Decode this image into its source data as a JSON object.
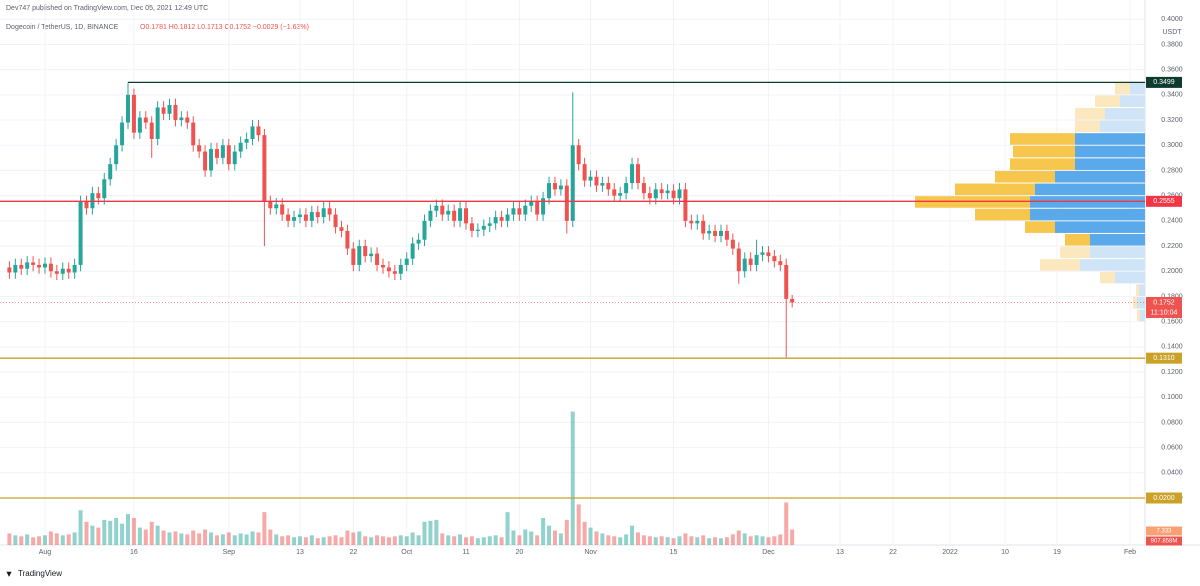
{
  "header": {
    "published": "Dev747 published on TradingView.com, Dec 05, 2021 12:49 UTC",
    "symbol": "Dogecoin / TetherUS, 1D, BINANCE",
    "ohlc": "O0.1781 H0.1812 L0.1713 C0.1752 −0.0029 (−1.63%)"
  },
  "chart_data": {
    "type": "candlestick",
    "categories": [
      null,
      null,
      null,
      null,
      null,
      null,
      "Aug",
      null,
      null,
      null,
      null,
      null,
      null,
      null,
      null,
      null,
      null,
      null,
      null,
      null,
      null,
      "16",
      null,
      null,
      null,
      null,
      null,
      null,
      null,
      null,
      null,
      null,
      null,
      null,
      null,
      null,
      null,
      "Sep",
      null,
      null,
      null,
      null,
      null,
      null,
      null,
      null,
      null,
      null,
      null,
      "13",
      null,
      null,
      null,
      null,
      null,
      null,
      null,
      null,
      "22",
      null,
      null,
      null,
      null,
      null,
      null,
      null,
      null,
      "Oct",
      null,
      null,
      null,
      null,
      null,
      null,
      null,
      null,
      null,
      "11",
      null,
      null,
      null,
      null,
      null,
      null,
      null,
      null,
      "20",
      null,
      null,
      null,
      null,
      null,
      null,
      null,
      null,
      null,
      null,
      null,
      "Nov",
      null,
      null,
      null,
      null,
      null,
      null,
      null,
      null,
      null,
      null,
      null,
      null,
      null,
      "15",
      null,
      null,
      null,
      null,
      null,
      null,
      null,
      null,
      null,
      null,
      null,
      null,
      null,
      null,
      null,
      "Dec",
      null,
      null,
      null,
      null
    ],
    "future_labels": [
      "13",
      "22",
      "2022",
      "10",
      "19",
      "Feb"
    ],
    "open": [
      0.203,
      0.199,
      0.205,
      0.202,
      0.207,
      0.205,
      0.203,
      0.206,
      0.2,
      0.198,
      0.202,
      0.199,
      0.205,
      0.255,
      0.25,
      0.262,
      0.258,
      0.273,
      0.285,
      0.3,
      0.318,
      0.34,
      0.31,
      0.322,
      0.318,
      0.305,
      0.33,
      0.325,
      0.332,
      0.32,
      0.322,
      0.318,
      0.3,
      0.295,
      0.28,
      0.297,
      0.29,
      0.3,
      0.285,
      0.295,
      0.302,
      0.305,
      0.315,
      0.308,
      0.255,
      0.25,
      0.253,
      0.245,
      0.24,
      0.243,
      0.245,
      0.24,
      0.247,
      0.243,
      0.25,
      0.245,
      0.235,
      0.232,
      0.218,
      0.205,
      0.22,
      0.212,
      0.214,
      0.205,
      0.203,
      0.2,
      0.198,
      0.205,
      0.21,
      0.222,
      0.225,
      0.24,
      0.248,
      0.252,
      0.245,
      0.248,
      0.24,
      0.25,
      0.238,
      0.232,
      0.233,
      0.236,
      0.238,
      0.243,
      0.24,
      0.245,
      0.25,
      0.245,
      0.252,
      0.255,
      0.245,
      0.258,
      0.27,
      0.265,
      0.268,
      0.24,
      0.3,
      0.285,
      0.272,
      0.275,
      0.268,
      0.27,
      0.265,
      0.26,
      0.262,
      0.27,
      0.285,
      0.27,
      0.262,
      0.258,
      0.265,
      0.262,
      0.264,
      0.258,
      0.265,
      0.24,
      0.238,
      0.24,
      0.23,
      0.232,
      0.228,
      0.232,
      0.225,
      0.218,
      0.2,
      0.21,
      0.205,
      0.213,
      0.215,
      0.212,
      0.208,
      0.205,
      0.1781
    ],
    "high": [
      0.208,
      0.21,
      0.21,
      0.212,
      0.212,
      0.21,
      0.211,
      0.211,
      0.205,
      0.207,
      0.207,
      0.21,
      0.26,
      0.26,
      0.267,
      0.267,
      0.278,
      0.29,
      0.305,
      0.323,
      0.3499,
      0.345,
      0.327,
      0.327,
      0.323,
      0.335,
      0.335,
      0.337,
      0.337,
      0.327,
      0.327,
      0.323,
      0.305,
      0.3,
      0.302,
      0.302,
      0.305,
      0.305,
      0.3,
      0.307,
      0.31,
      0.32,
      0.32,
      0.313,
      0.26,
      0.258,
      0.258,
      0.25,
      0.248,
      0.25,
      0.25,
      0.252,
      0.252,
      0.255,
      0.255,
      0.25,
      0.24,
      0.237,
      0.223,
      0.225,
      0.225,
      0.219,
      0.219,
      0.21,
      0.208,
      0.205,
      0.21,
      0.215,
      0.227,
      0.23,
      0.245,
      0.253,
      0.257,
      0.257,
      0.253,
      0.253,
      0.255,
      0.255,
      0.243,
      0.238,
      0.241,
      0.243,
      0.248,
      0.248,
      0.25,
      0.255,
      0.255,
      0.257,
      0.26,
      0.26,
      0.263,
      0.275,
      0.275,
      0.273,
      0.273,
      0.342,
      0.305,
      0.29,
      0.28,
      0.28,
      0.275,
      0.275,
      0.27,
      0.267,
      0.275,
      0.29,
      0.29,
      0.275,
      0.267,
      0.27,
      0.27,
      0.269,
      0.269,
      0.27,
      0.27,
      0.245,
      0.245,
      0.245,
      0.237,
      0.237,
      0.237,
      0.237,
      0.23,
      0.223,
      0.215,
      0.215,
      0.225,
      0.22,
      0.22,
      0.217,
      0.213,
      0.21,
      0.1812
    ],
    "low": [
      0.194,
      0.194,
      0.197,
      0.197,
      0.2,
      0.198,
      0.198,
      0.195,
      0.193,
      0.193,
      0.194,
      0.194,
      0.2,
      0.245,
      0.245,
      0.253,
      0.253,
      0.268,
      0.28,
      0.295,
      0.313,
      0.305,
      0.305,
      0.313,
      0.29,
      0.3,
      0.32,
      0.32,
      0.315,
      0.315,
      0.313,
      0.295,
      0.29,
      0.275,
      0.275,
      0.285,
      0.285,
      0.28,
      0.28,
      0.29,
      0.297,
      0.3,
      0.303,
      0.22,
      0.245,
      0.245,
      0.24,
      0.235,
      0.235,
      0.238,
      0.235,
      0.235,
      0.238,
      0.238,
      0.24,
      0.23,
      0.227,
      0.213,
      0.2,
      0.2,
      0.207,
      0.207,
      0.2,
      0.198,
      0.195,
      0.193,
      0.193,
      0.2,
      0.205,
      0.217,
      0.22,
      0.235,
      0.243,
      0.24,
      0.24,
      0.235,
      0.235,
      0.233,
      0.227,
      0.227,
      0.228,
      0.231,
      0.233,
      0.235,
      0.235,
      0.24,
      0.24,
      0.24,
      0.247,
      0.24,
      0.24,
      0.253,
      0.26,
      0.26,
      0.23,
      0.235,
      0.28,
      0.267,
      0.267,
      0.263,
      0.263,
      0.26,
      0.255,
      0.255,
      0.257,
      0.265,
      0.265,
      0.257,
      0.253,
      0.253,
      0.257,
      0.257,
      0.253,
      0.253,
      0.235,
      0.233,
      0.233,
      0.225,
      0.225,
      0.223,
      0.223,
      0.22,
      0.213,
      0.19,
      0.195,
      0.2,
      0.2,
      0.208,
      0.207,
      0.203,
      0.2,
      0.131,
      0.1713
    ],
    "close": [
      0.199,
      0.205,
      0.202,
      0.207,
      0.205,
      0.203,
      0.206,
      0.2,
      0.198,
      0.202,
      0.199,
      0.205,
      0.255,
      0.25,
      0.262,
      0.258,
      0.273,
      0.285,
      0.3,
      0.318,
      0.34,
      0.31,
      0.322,
      0.318,
      0.305,
      0.33,
      0.325,
      0.332,
      0.32,
      0.322,
      0.318,
      0.3,
      0.295,
      0.28,
      0.297,
      0.29,
      0.3,
      0.285,
      0.295,
      0.302,
      0.305,
      0.315,
      0.308,
      0.255,
      0.25,
      0.253,
      0.245,
      0.24,
      0.243,
      0.245,
      0.24,
      0.247,
      0.243,
      0.25,
      0.245,
      0.235,
      0.232,
      0.218,
      0.205,
      0.22,
      0.212,
      0.214,
      0.205,
      0.203,
      0.2,
      0.198,
      0.205,
      0.21,
      0.222,
      0.225,
      0.24,
      0.248,
      0.252,
      0.245,
      0.248,
      0.24,
      0.25,
      0.238,
      0.232,
      0.233,
      0.236,
      0.238,
      0.243,
      0.24,
      0.245,
      0.25,
      0.245,
      0.252,
      0.255,
      0.245,
      0.258,
      0.27,
      0.265,
      0.268,
      0.24,
      0.3,
      0.285,
      0.272,
      0.275,
      0.268,
      0.27,
      0.265,
      0.26,
      0.262,
      0.27,
      0.285,
      0.27,
      0.262,
      0.258,
      0.265,
      0.262,
      0.264,
      0.258,
      0.265,
      0.24,
      0.238,
      0.24,
      0.23,
      0.232,
      0.228,
      0.232,
      0.225,
      0.218,
      0.2,
      0.21,
      0.205,
      0.213,
      0.215,
      0.212,
      0.208,
      0.205,
      0.1781,
      0.1752
    ],
    "volume": [
      1.2,
      1.0,
      0.9,
      1.1,
      0.8,
      0.9,
      1.0,
      1.4,
      1.2,
      1.0,
      1.1,
      1.3,
      3.6,
      2.4,
      2.0,
      1.8,
      2.6,
      2.5,
      2.8,
      2.2,
      3.2,
      2.8,
      1.8,
      1.6,
      2.4,
      2.0,
      1.5,
      1.3,
      1.4,
      1.2,
      1.1,
      1.5,
      1.2,
      1.6,
      1.3,
      1.0,
      1.1,
      1.3,
      1.0,
      1.2,
      1.1,
      1.4,
      1.3,
      3.4,
      1.6,
      1.1,
      0.9,
      1.0,
      0.8,
      0.9,
      0.8,
      1.0,
      0.7,
      0.8,
      0.9,
      1.0,
      0.8,
      1.5,
      1.3,
      1.4,
      0.9,
      0.8,
      1.0,
      0.9,
      0.8,
      0.9,
      1.0,
      0.9,
      1.3,
      1.0,
      2.4,
      2.5,
      2.6,
      1.2,
      1.0,
      0.9,
      1.1,
      0.8,
      0.9,
      0.7,
      0.8,
      0.9,
      1.0,
      0.8,
      3.4,
      1.5,
      1.0,
      1.6,
      1.4,
      1.0,
      2.8,
      2.0,
      1.5,
      1.2,
      2.6,
      13.8,
      4.2,
      2.4,
      1.8,
      1.4,
      1.2,
      1.0,
      0.9,
      0.8,
      1.1,
      2.0,
      1.3,
      1.0,
      0.9,
      0.8,
      0.9,
      0.8,
      0.7,
      0.9,
      1.2,
      0.9,
      0.8,
      1.0,
      0.7,
      0.8,
      0.7,
      0.8,
      1.1,
      1.5,
      1.2,
      0.9,
      1.0,
      0.9,
      0.8,
      0.9,
      1.1,
      4.4,
      1.6
    ],
    "volume_lim": [
      0,
      15
    ],
    "volume_badges": [
      "7.333",
      "907.858M"
    ],
    "ylim": [
      -0.0173,
      0.4153
    ],
    "yticks": [
      {
        "value": 0.4,
        "label": "0.4000"
      },
      {
        "value": 0.38,
        "label": "0.3800"
      },
      {
        "value": 0.36,
        "label": "0.3600"
      },
      {
        "value": 0.34,
        "label": "0.3400"
      },
      {
        "value": 0.32,
        "label": "0.3200"
      },
      {
        "value": 0.3,
        "label": "0.3000"
      },
      {
        "value": 0.28,
        "label": "0.2800"
      },
      {
        "value": 0.26,
        "label": "0.2600"
      },
      {
        "value": 0.24,
        "label": "0.2400"
      },
      {
        "value": 0.22,
        "label": "0.2200"
      },
      {
        "value": 0.2,
        "label": "0.2000"
      },
      {
        "value": 0.18,
        "label": "0.1800"
      },
      {
        "value": 0.16,
        "label": "0.1600"
      },
      {
        "value": 0.14,
        "label": "0.1400"
      },
      {
        "value": 0.12,
        "label": "0.1200"
      },
      {
        "value": 0.1,
        "label": "0.1000"
      },
      {
        "value": 0.08,
        "label": "0.0800"
      },
      {
        "value": 0.06,
        "label": "0.0600"
      },
      {
        "value": 0.04,
        "label": "0.0400"
      },
      {
        "value": 0.02,
        "label": "0.0200"
      }
    ],
    "y_unit": "USDT",
    "grid": true,
    "up_color": "#26a69a",
    "down_color": "#ef5350",
    "levels": [
      {
        "value": 0.3499,
        "label": "0.3499",
        "color": "#0d3b2e"
      },
      {
        "value": 0.2555,
        "label": "0.2555",
        "color": "#f23645"
      },
      {
        "value": 0.131,
        "label": "0.1310",
        "color": "#c9a227"
      },
      {
        "value": 0.02,
        "label": "0.0200",
        "color": "#c9a227"
      }
    ],
    "last_price": {
      "value": 0.1752,
      "label": "0.1752",
      "countdown": "11:10:04",
      "color": "#ef5350"
    },
    "volume_profile": {
      "prices": [
        0.165,
        0.175,
        0.185,
        0.195,
        0.205,
        0.215,
        0.225,
        0.235,
        0.245,
        0.255,
        0.265,
        0.275,
        0.285,
        0.295,
        0.305,
        0.315,
        0.325,
        0.335,
        0.345
      ],
      "down": [
        5,
        8,
        6,
        30,
        65,
        55,
        55,
        90,
        115,
        115,
        110,
        90,
        70,
        70,
        70,
        45,
        40,
        25,
        15
      ],
      "up": [
        3,
        4,
        3,
        15,
        40,
        30,
        25,
        30,
        55,
        115,
        80,
        60,
        65,
        62,
        65,
        25,
        30,
        25,
        15
      ],
      "value_area": [
        0.22,
        0.31
      ],
      "colors": {
        "down": "#5aa9ea",
        "down_light": "#cfe4f6",
        "up": "#f7c64c",
        "up_light": "#fbe8bf"
      }
    }
  },
  "footer": {
    "brand": "TradingView"
  }
}
